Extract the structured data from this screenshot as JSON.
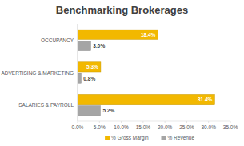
{
  "chart_data": {
    "type": "bar",
    "title": "Benchmarking Brokerages",
    "orientation": "horizontal",
    "categories": [
      "OCCUPANCY",
      "ADVERTISING & MARKETING",
      "SALARIES & PAYROLL"
    ],
    "series": [
      {
        "name": "% Gross Margin",
        "color": "#f2b800",
        "values": [
          18.4,
          5.3,
          31.4
        ],
        "value_labels": [
          "18.4%",
          "5.3%",
          "31.4%"
        ]
      },
      {
        "name": "% Revenue",
        "color": "#a5a5a5",
        "values": [
          3.0,
          0.8,
          5.2
        ],
        "value_labels": [
          "3.0%",
          "0.8%",
          "5.2%"
        ]
      }
    ],
    "xlim": [
      0,
      35
    ],
    "xticks": [
      {
        "value": 0,
        "label": "0.0%"
      },
      {
        "value": 5,
        "label": "5.0%"
      },
      {
        "value": 10,
        "label": "10.0%"
      },
      {
        "value": 15,
        "label": "15.0%"
      },
      {
        "value": 20,
        "label": "20.0%"
      },
      {
        "value": 25,
        "label": "25.0%"
      },
      {
        "value": 30,
        "label": "30.0%"
      },
      {
        "value": 35,
        "label": "35.0%"
      }
    ],
    "grid": false,
    "legend": "bottom",
    "data_labels": true
  }
}
